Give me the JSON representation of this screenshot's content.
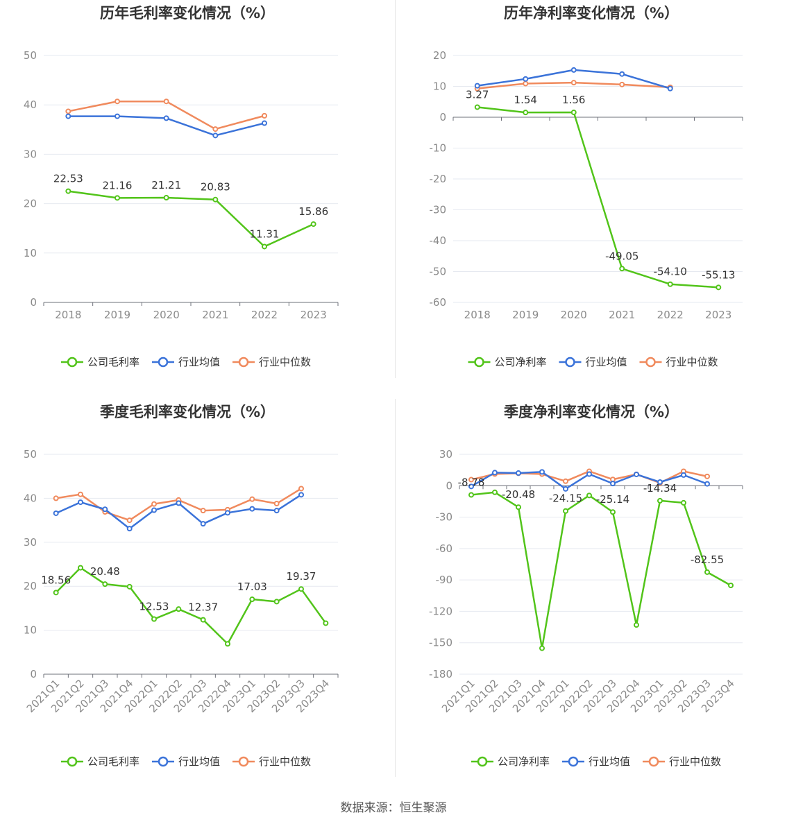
{
  "source_label": "数据来源：恒生聚源",
  "colors": {
    "company": "#52c41a",
    "avg": "#3b73d9",
    "median": "#f08a5d"
  },
  "legend_common": {
    "avg": "行业均值",
    "median": "行业中位数"
  },
  "chart_data": [
    {
      "id": "annual-gross",
      "type": "line",
      "title": "历年毛利率变化情况（%）",
      "categories": [
        "2018",
        "2019",
        "2020",
        "2021",
        "2022",
        "2023"
      ],
      "ylim": [
        0,
        50
      ],
      "yticks": [
        0,
        10,
        20,
        30,
        40,
        50
      ],
      "series": [
        {
          "name": "公司毛利率",
          "role": "company",
          "values": [
            22.53,
            21.16,
            21.21,
            20.83,
            11.31,
            15.86
          ],
          "labels": [
            "22.53",
            "21.16",
            "21.21",
            "20.83",
            "11.31",
            "15.86"
          ]
        },
        {
          "name": "行业均值",
          "role": "avg",
          "values": [
            37.7,
            37.7,
            37.3,
            33.8,
            36.3,
            null
          ]
        },
        {
          "name": "行业中位数",
          "role": "median",
          "values": [
            38.7,
            40.7,
            40.7,
            35.1,
            37.8,
            null
          ]
        }
      ],
      "legend": "bottom"
    },
    {
      "id": "annual-net",
      "type": "line",
      "title": "历年净利率变化情况（%）",
      "categories": [
        "2018",
        "2019",
        "2020",
        "2021",
        "2022",
        "2023"
      ],
      "ylim": [
        -60,
        20
      ],
      "yticks": [
        -60,
        -50,
        -40,
        -30,
        -20,
        -10,
        0,
        10,
        20
      ],
      "series": [
        {
          "name": "公司净利率",
          "role": "company",
          "values": [
            3.27,
            1.54,
            1.56,
            -49.05,
            -54.1,
            -55.13
          ],
          "labels": [
            "3.27",
            "1.54",
            "1.56",
            "-49.05",
            "-54.10",
            "-55.13"
          ]
        },
        {
          "name": "行业均值",
          "role": "avg",
          "values": [
            10.2,
            12.4,
            15.3,
            14.0,
            9.3,
            null
          ]
        },
        {
          "name": "行业中位数",
          "role": "median",
          "values": [
            9.3,
            10.9,
            11.2,
            10.6,
            9.7,
            null
          ]
        }
      ],
      "legend": "bottom"
    },
    {
      "id": "quarterly-gross",
      "type": "line",
      "title": "季度毛利率变化情况（%）",
      "categories": [
        "2021Q1",
        "2021Q2",
        "2021Q3",
        "2021Q4",
        "2022Q1",
        "2022Q2",
        "2022Q3",
        "2022Q4",
        "2023Q1",
        "2023Q2",
        "2023Q3",
        "2023Q4"
      ],
      "ylim": [
        0,
        50
      ],
      "yticks": [
        0,
        10,
        20,
        30,
        40,
        50
      ],
      "series": [
        {
          "name": "公司毛利率",
          "role": "company",
          "values": [
            18.56,
            24.2,
            20.48,
            19.9,
            12.53,
            14.8,
            12.37,
            6.9,
            17.03,
            16.5,
            19.37,
            11.6
          ],
          "labels": [
            "18.56",
            "",
            "20.48",
            "",
            "12.53",
            "",
            "12.37",
            "",
            "17.03",
            "",
            "19.37",
            ""
          ]
        },
        {
          "name": "行业均值",
          "role": "avg",
          "values": [
            36.6,
            39.1,
            37.5,
            33.1,
            37.3,
            38.9,
            34.2,
            36.7,
            37.6,
            37.2,
            40.8,
            null
          ]
        },
        {
          "name": "行业中位数",
          "role": "median",
          "values": [
            40.0,
            40.9,
            36.9,
            35.0,
            38.7,
            39.6,
            37.2,
            37.4,
            39.8,
            38.8,
            42.2,
            null
          ]
        }
      ],
      "legend": "bottom"
    },
    {
      "id": "quarterly-net",
      "type": "line",
      "title": "季度净利率变化情况（%）",
      "categories": [
        "2021Q1",
        "2021Q2",
        "2021Q3",
        "2021Q4",
        "2022Q1",
        "2022Q2",
        "2022Q3",
        "2022Q4",
        "2023Q1",
        "2023Q2",
        "2023Q3",
        "2023Q4"
      ],
      "ylim": [
        -180,
        30
      ],
      "yticks": [
        -180,
        -150,
        -120,
        -90,
        -60,
        -30,
        0,
        30
      ],
      "series": [
        {
          "name": "公司净利率",
          "role": "company",
          "values": [
            -8.78,
            -6.3,
            -20.48,
            -155.2,
            -24.15,
            -9.3,
            -25.14,
            -133.0,
            -14.34,
            -16.3,
            -82.55,
            -95.2
          ],
          "labels": [
            "-8.78",
            "",
            "-20.48",
            "",
            "-24.15",
            "",
            "-25.14",
            "",
            "-14.34",
            "",
            "-82.55",
            ""
          ]
        },
        {
          "name": "行业均值",
          "role": "avg",
          "values": [
            -0.7,
            12.5,
            12.1,
            13.2,
            -3.0,
            11.1,
            2.1,
            10.8,
            3.5,
            10.2,
            1.8,
            null
          ]
        },
        {
          "name": "行业中位数",
          "role": "median",
          "values": [
            5.8,
            11.2,
            11.9,
            11.1,
            4.3,
            13.8,
            6.0,
            10.9,
            2.7,
            13.8,
            8.9,
            null
          ]
        }
      ],
      "legend": "bottom"
    }
  ]
}
